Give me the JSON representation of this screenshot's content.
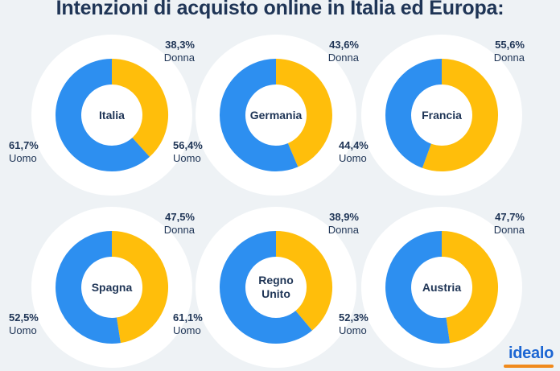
{
  "title": "Intenzioni di acquisto online in Italia ed Europa:",
  "brand": "idealo",
  "colors": {
    "donna": "#ffbe0b",
    "uomo": "#2d8ff0",
    "background": "#eef2f5",
    "circle": "#ffffff",
    "text": "#1f3556",
    "brand": "#1c66d3",
    "brand_underline": "#f08a1c"
  },
  "chart_data": [
    {
      "type": "pie",
      "title": "Italia",
      "categories": [
        "Donna",
        "Uomo"
      ],
      "values": [
        38.3,
        61.7
      ],
      "value_labels": [
        "38,3%",
        "61,7%"
      ]
    },
    {
      "type": "pie",
      "title": "Germania",
      "categories": [
        "Donna",
        "Uomo"
      ],
      "values": [
        43.6,
        56.4
      ],
      "value_labels": [
        "43,6%",
        "56,4%"
      ]
    },
    {
      "type": "pie",
      "title": "Francia",
      "categories": [
        "Donna",
        "Uomo"
      ],
      "values": [
        55.6,
        44.4
      ],
      "value_labels": [
        "55,6%",
        "44,4%"
      ]
    },
    {
      "type": "pie",
      "title": "Spagna",
      "categories": [
        "Donna",
        "Uomo"
      ],
      "values": [
        47.5,
        52.5
      ],
      "value_labels": [
        "47,5%",
        "52,5%"
      ]
    },
    {
      "type": "pie",
      "title": "Regno\nUnito",
      "categories": [
        "Donna",
        "Uomo"
      ],
      "values": [
        38.9,
        61.1
      ],
      "value_labels": [
        "38,9%",
        "61,1%"
      ]
    },
    {
      "type": "pie",
      "title": "Austria",
      "categories": [
        "Donna",
        "Uomo"
      ],
      "values": [
        47.7,
        52.3
      ],
      "value_labels": [
        "47,7%",
        "52,3%"
      ]
    }
  ]
}
